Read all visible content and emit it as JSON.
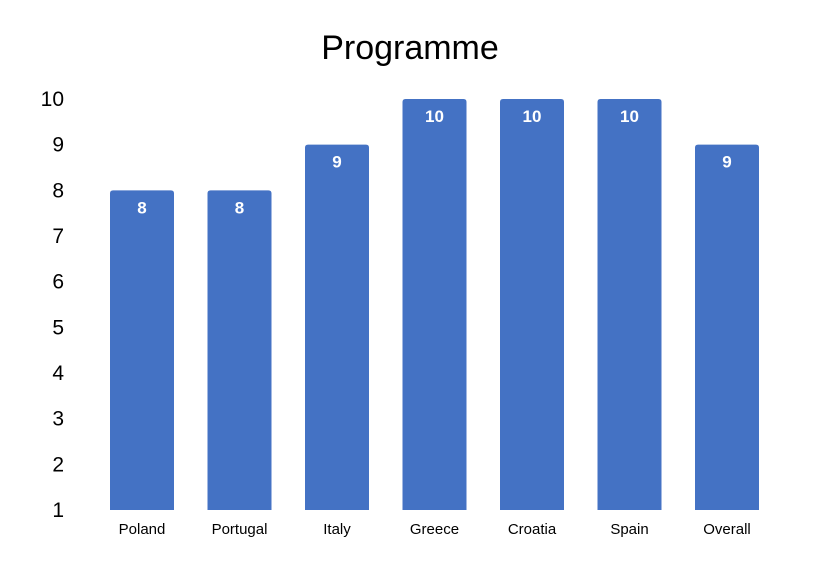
{
  "chart_data": {
    "type": "bar",
    "title": "Programme",
    "xlabel": "",
    "ylabel": "",
    "categories": [
      "Poland",
      "Portugal",
      "Italy",
      "Greece",
      "Croatia",
      "Spain",
      "Overall"
    ],
    "values": [
      8,
      8,
      9,
      10,
      10,
      10,
      9
    ],
    "data_labels": [
      "8",
      "8",
      "9",
      "10",
      "10",
      "10",
      "9"
    ],
    "yticks": [
      "1",
      "2",
      "3",
      "4",
      "5",
      "6",
      "7",
      "8",
      "9",
      "10"
    ],
    "ylim": [
      1,
      10
    ],
    "grid": false,
    "legend": "none",
    "bar_color": "#4472C4",
    "label_color": "#FFFFFF"
  }
}
